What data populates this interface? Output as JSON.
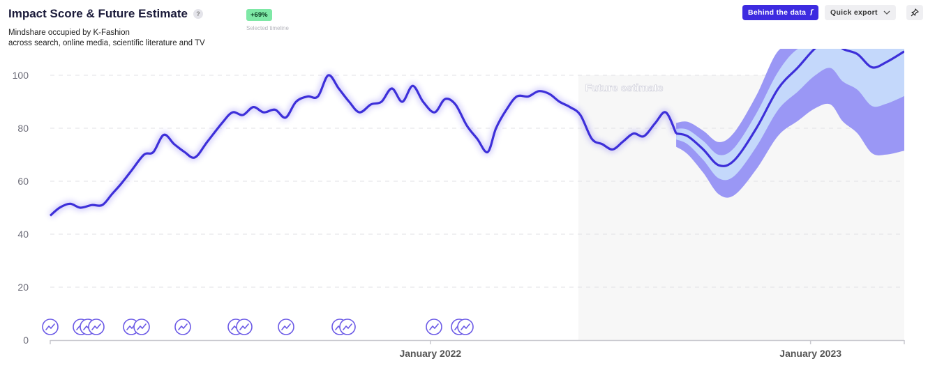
{
  "header": {
    "title": "Impact Score & Future Estimate",
    "help": "?",
    "subtitle_line1": "Mindshare occupied by K-Fashion",
    "subtitle_line2": "across search, online media, scientific literature and TV"
  },
  "badge": {
    "value": "+69%",
    "caption": "Selected timeline"
  },
  "toolbar": {
    "behind_label": "Behind the data",
    "behind_icon": "f",
    "export_label": "Quick export"
  },
  "colors": {
    "line": "#3d2fd9",
    "outer_band": "#9a97f5",
    "inner_band": "#c4d8fb",
    "forecast_bg": "#f7f7f7",
    "event_icon": "#6b5ae6"
  },
  "chart_data": {
    "type": "line",
    "ylim": [
      0,
      110
    ],
    "yticks": [
      0,
      20,
      40,
      60,
      80,
      100
    ],
    "xlim": [
      "2021-01-01",
      "2023-04-01"
    ],
    "xticks": [
      {
        "date": "2022-01-01",
        "label": "January 2022"
      },
      {
        "date": "2023-01-01",
        "label": "January 2023"
      }
    ],
    "forecast_start": "2022-05-23",
    "future_label": "Future estimate",
    "series": [
      {
        "role": "historical",
        "points": [
          [
            "2021-01-01",
            47
          ],
          [
            "2021-01-10",
            50
          ],
          [
            "2021-01-20",
            51.5
          ],
          [
            "2021-01-30",
            50
          ],
          [
            "2021-02-10",
            51
          ],
          [
            "2021-02-20",
            51
          ],
          [
            "2021-03-01",
            55
          ],
          [
            "2021-03-10",
            59
          ],
          [
            "2021-03-20",
            64
          ],
          [
            "2021-04-01",
            70
          ],
          [
            "2021-04-10",
            71
          ],
          [
            "2021-04-20",
            77.5
          ],
          [
            "2021-04-30",
            74
          ],
          [
            "2021-05-10",
            71
          ],
          [
            "2021-05-20",
            69
          ],
          [
            "2021-06-01",
            75
          ],
          [
            "2021-06-15",
            82
          ],
          [
            "2021-06-25",
            86
          ],
          [
            "2021-07-05",
            85
          ],
          [
            "2021-07-15",
            88
          ],
          [
            "2021-07-25",
            86
          ],
          [
            "2021-08-05",
            87
          ],
          [
            "2021-08-15",
            84
          ],
          [
            "2021-08-25",
            90
          ],
          [
            "2021-09-05",
            92
          ],
          [
            "2021-09-15",
            92
          ],
          [
            "2021-09-25",
            100
          ],
          [
            "2021-10-05",
            95
          ],
          [
            "2021-10-15",
            90
          ],
          [
            "2021-10-25",
            86
          ],
          [
            "2021-11-05",
            89
          ],
          [
            "2021-11-15",
            90
          ],
          [
            "2021-11-25",
            95
          ],
          [
            "2021-12-05",
            90
          ],
          [
            "2021-12-15",
            96
          ],
          [
            "2021-12-25",
            90
          ],
          [
            "2022-01-05",
            86
          ],
          [
            "2022-01-15",
            91
          ],
          [
            "2022-01-25",
            89
          ],
          [
            "2022-02-05",
            81
          ],
          [
            "2022-02-15",
            76
          ],
          [
            "2022-02-25",
            71
          ],
          [
            "2022-03-05",
            80
          ],
          [
            "2022-03-15",
            87
          ],
          [
            "2022-03-25",
            92
          ],
          [
            "2022-04-05",
            92
          ],
          [
            "2022-04-15",
            94
          ],
          [
            "2022-04-25",
            93
          ],
          [
            "2022-05-05",
            90
          ],
          [
            "2022-05-15",
            88
          ],
          [
            "2022-05-25",
            85
          ],
          [
            "2022-06-05",
            76
          ],
          [
            "2022-06-15",
            74
          ],
          [
            "2022-06-25",
            72
          ],
          [
            "2022-07-05",
            75
          ],
          [
            "2022-07-15",
            78
          ],
          [
            "2022-07-25",
            77
          ],
          [
            "2022-08-05",
            82
          ],
          [
            "2022-08-15",
            86
          ],
          [
            "2022-08-25",
            78
          ]
        ]
      },
      {
        "role": "forecast",
        "points": [
          [
            "2022-08-25",
            78
          ],
          [
            "2022-09-05",
            77
          ],
          [
            "2022-09-20",
            72
          ],
          [
            "2022-10-05",
            66
          ],
          [
            "2022-10-20",
            68
          ],
          [
            "2022-11-10",
            80
          ],
          [
            "2022-12-01",
            95
          ],
          [
            "2022-12-20",
            103
          ],
          [
            "2023-01-05",
            110
          ],
          [
            "2023-01-20",
            114
          ],
          [
            "2023-02-01",
            110
          ],
          [
            "2023-02-15",
            108
          ],
          [
            "2023-03-01",
            103
          ],
          [
            "2023-03-15",
            105
          ],
          [
            "2023-04-01",
            109
          ]
        ]
      }
    ]
  }
}
